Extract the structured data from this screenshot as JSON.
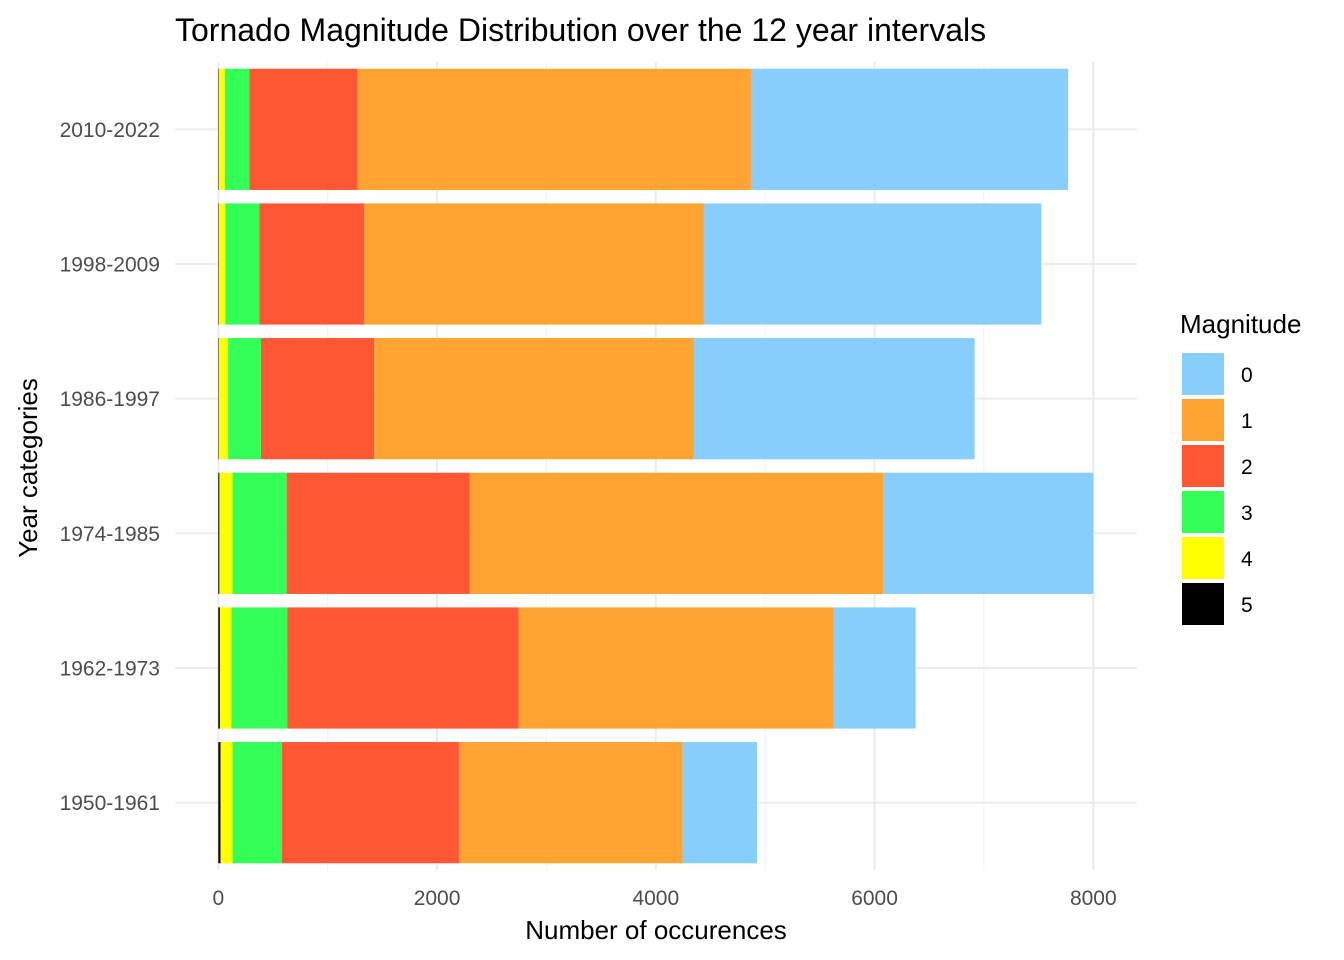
{
  "chart_data": {
    "type": "bar",
    "orientation": "horizontal",
    "stacked": true,
    "title": "Tornado Magnitude Distribution over the 12 year intervals",
    "xlabel": "Number of occurences",
    "ylabel": "Year categories",
    "xlim": [
      0,
      8400
    ],
    "x_ticks": [
      "0",
      "2000",
      "4000",
      "6000",
      "8000"
    ],
    "x_tick_values": [
      0,
      2000,
      4000,
      6000,
      8000
    ],
    "grid": true,
    "legend_title": "Magnitude",
    "legend_position": "right",
    "categories": [
      "1950-1961",
      "1962-1973",
      "1974-1985",
      "1986-1997",
      "1998-2009",
      "2010-2022"
    ],
    "series": [
      {
        "name": "5",
        "color": "#000000",
        "values": [
          20,
          15,
          10,
          5,
          5,
          5
        ]
      },
      {
        "name": "4",
        "color": "#ffff00",
        "values": [
          110,
          105,
          120,
          85,
          60,
          55
        ]
      },
      {
        "name": "3",
        "color": "#33ff57",
        "values": [
          450,
          510,
          495,
          300,
          310,
          225
        ]
      },
      {
        "name": "2",
        "color": "#ff5733",
        "values": [
          1620,
          2115,
          1675,
          1035,
          960,
          990
        ]
      },
      {
        "name": "1",
        "color": "#ffa333",
        "values": [
          2045,
          2880,
          3780,
          2925,
          3105,
          3595
        ]
      },
      {
        "name": "0",
        "color": "#87cefa",
        "values": [
          680,
          750,
          1920,
          2565,
          3085,
          2900
        ]
      }
    ],
    "legend_order": [
      "0",
      "1",
      "2",
      "3",
      "4",
      "5"
    ]
  }
}
